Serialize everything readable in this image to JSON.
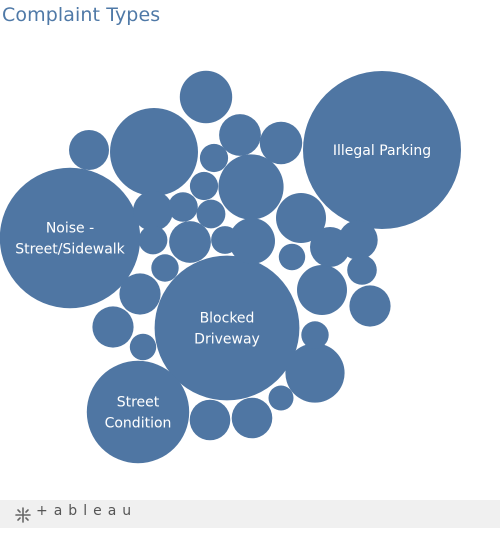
{
  "title": "Complaint Types",
  "footer": {
    "brand": "+ableau"
  },
  "colors": {
    "bubble": "#4f76a3",
    "title": "#4f79a7",
    "label": "#ffffff",
    "footer_bg": "#f0f0f0"
  },
  "icons": {
    "logo": "tableau-logo-icon"
  },
  "chart_data": {
    "type": "bubble",
    "title": "Complaint Types",
    "legend": "none",
    "bubbles": [
      {
        "label": "Illegal Parking",
        "lines": [
          "Illegal Parking"
        ],
        "size": 100
      },
      {
        "label": "Blocked Driveway",
        "lines": [
          "Blocked",
          "Driveway"
        ],
        "size": 84
      },
      {
        "label": "Noise - Street/Sidewalk",
        "lines": [
          "Noise -",
          "Street/Sidewalk"
        ],
        "size": 79
      },
      {
        "label": "Street Condition",
        "lines": [
          "Street",
          "Condition"
        ],
        "size": 42
      },
      {
        "label": "",
        "lines": [],
        "size": 31
      },
      {
        "label": "",
        "lines": [],
        "size": 17
      },
      {
        "label": "",
        "lines": [],
        "size": 14
      },
      {
        "label": "",
        "lines": [],
        "size": 11
      },
      {
        "label": "",
        "lines": [],
        "size": 10
      },
      {
        "label": "",
        "lines": [],
        "size": 10
      },
      {
        "label": "",
        "lines": [],
        "size": 8.5
      },
      {
        "label": "",
        "lines": [],
        "size": 7.2
      },
      {
        "label": "",
        "lines": [],
        "size": 7
      },
      {
        "label": "",
        "lines": [],
        "size": 7
      },
      {
        "label": "",
        "lines": [],
        "size": 6.8
      },
      {
        "label": "",
        "lines": [],
        "size": 6.8
      },
      {
        "label": "",
        "lines": [],
        "size": 6.8
      },
      {
        "label": "",
        "lines": [],
        "size": 6.6
      },
      {
        "label": "",
        "lines": [],
        "size": 6.6
      },
      {
        "label": "",
        "lines": [],
        "size": 6.4
      },
      {
        "label": "",
        "lines": [],
        "size": 6.4
      },
      {
        "label": "",
        "lines": [],
        "size": 6.4
      },
      {
        "label": "",
        "lines": [],
        "size": 6.2
      },
      {
        "label": "",
        "lines": [],
        "size": 3.5
      },
      {
        "label": "",
        "lines": [],
        "size": 3.5
      },
      {
        "label": "",
        "lines": [],
        "size": 3.3
      },
      {
        "label": "",
        "lines": [],
        "size": 3.3
      },
      {
        "label": "",
        "lines": [],
        "size": 3.2
      },
      {
        "label": "",
        "lines": [],
        "size": 3.2
      },
      {
        "label": "",
        "lines": [],
        "size": 3.1
      },
      {
        "label": "",
        "lines": [],
        "size": 3.0
      },
      {
        "label": "",
        "lines": [],
        "size": 2.8
      },
      {
        "label": "",
        "lines": [],
        "size": 3.0
      },
      {
        "label": "",
        "lines": [],
        "size": 2.8
      },
      {
        "label": "",
        "lines": [],
        "size": 2.5
      },
      {
        "label": "",
        "lines": [],
        "size": 2.4
      },
      {
        "label": "",
        "lines": [],
        "size": 2.4
      },
      {
        "label": "",
        "lines": [],
        "size": 2.0
      }
    ]
  }
}
